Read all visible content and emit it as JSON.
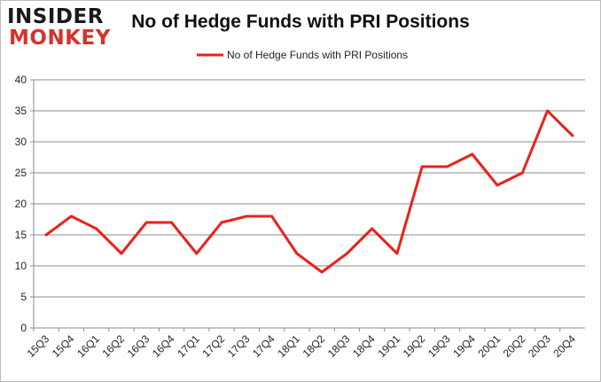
{
  "logo": {
    "line1": "INSIDER",
    "line2": "MONKEY"
  },
  "chart_data": {
    "type": "line",
    "title": "No of Hedge Funds with PRI Positions",
    "xlabel": "",
    "ylabel": "",
    "categories": [
      "15Q3",
      "15Q4",
      "16Q1",
      "16Q2",
      "16Q3",
      "16Q4",
      "17Q1",
      "17Q2",
      "17Q3",
      "17Q4",
      "18Q1",
      "18Q2",
      "18Q3",
      "18Q4",
      "19Q1",
      "19Q2",
      "19Q3",
      "19Q4",
      "20Q1",
      "20Q2",
      "20Q3",
      "20Q4"
    ],
    "series": [
      {
        "name": "No of Hedge Funds with PRI Positions",
        "values": [
          15,
          18,
          16,
          12,
          17,
          17,
          12,
          17,
          18,
          18,
          12,
          9,
          12,
          16,
          12,
          26,
          26,
          28,
          23,
          25,
          35,
          31
        ]
      }
    ],
    "ylim": [
      0,
      40
    ],
    "yticks": [
      0,
      5,
      10,
      15,
      20,
      25,
      30,
      35,
      40
    ],
    "grid": true,
    "legend": "top-center",
    "line_color": "#e8221b"
  }
}
